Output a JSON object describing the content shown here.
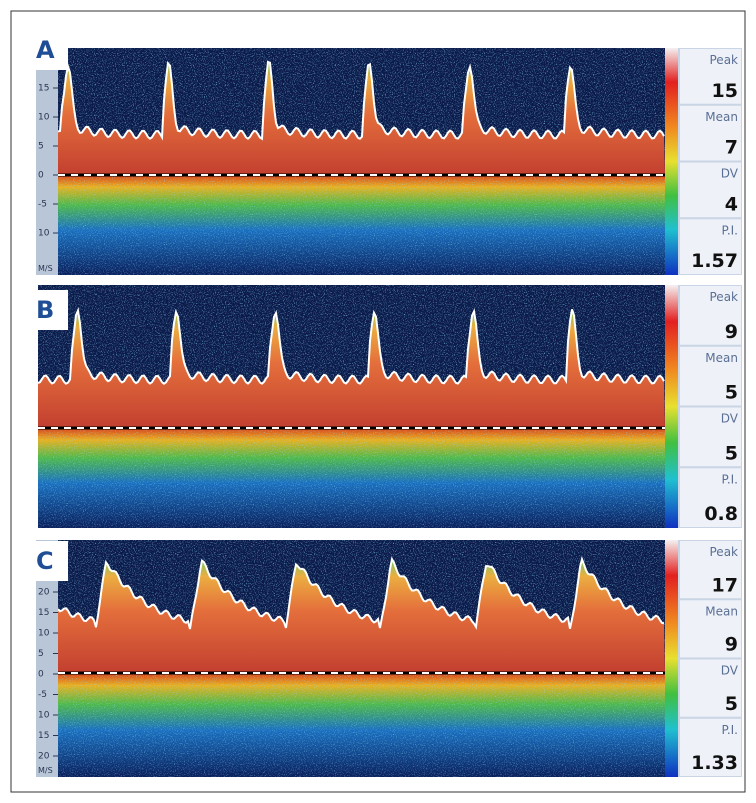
{
  "panels": [
    {
      "label": "A",
      "unit": "M/S",
      "axis_ticks": [
        "15",
        "10",
        "5",
        "0",
        "-5",
        "10"
      ],
      "measurements": [
        {
          "name": "Peak",
          "value": "15"
        },
        {
          "name": "Mean",
          "value": "7"
        },
        {
          "name": "DV",
          "value": "4"
        },
        {
          "name": "P.I.",
          "value": "1.57"
        }
      ]
    },
    {
      "label": "B",
      "measurements": [
        {
          "name": "Peak",
          "value": "9"
        },
        {
          "name": "Mean",
          "value": "5"
        },
        {
          "name": "DV",
          "value": "5"
        },
        {
          "name": "P.I.",
          "value": "0.8"
        }
      ]
    },
    {
      "label": "C",
      "unit": "M/S",
      "axis_ticks": [
        "20",
        "15",
        "10",
        "5",
        "0",
        "-5",
        "10",
        "15",
        "20"
      ],
      "measurements": [
        {
          "name": "Peak",
          "value": "17"
        },
        {
          "name": "Mean",
          "value": "9"
        },
        {
          "name": "DV",
          "value": "5"
        },
        {
          "name": "P.I.",
          "value": "1.33"
        }
      ]
    }
  ]
}
